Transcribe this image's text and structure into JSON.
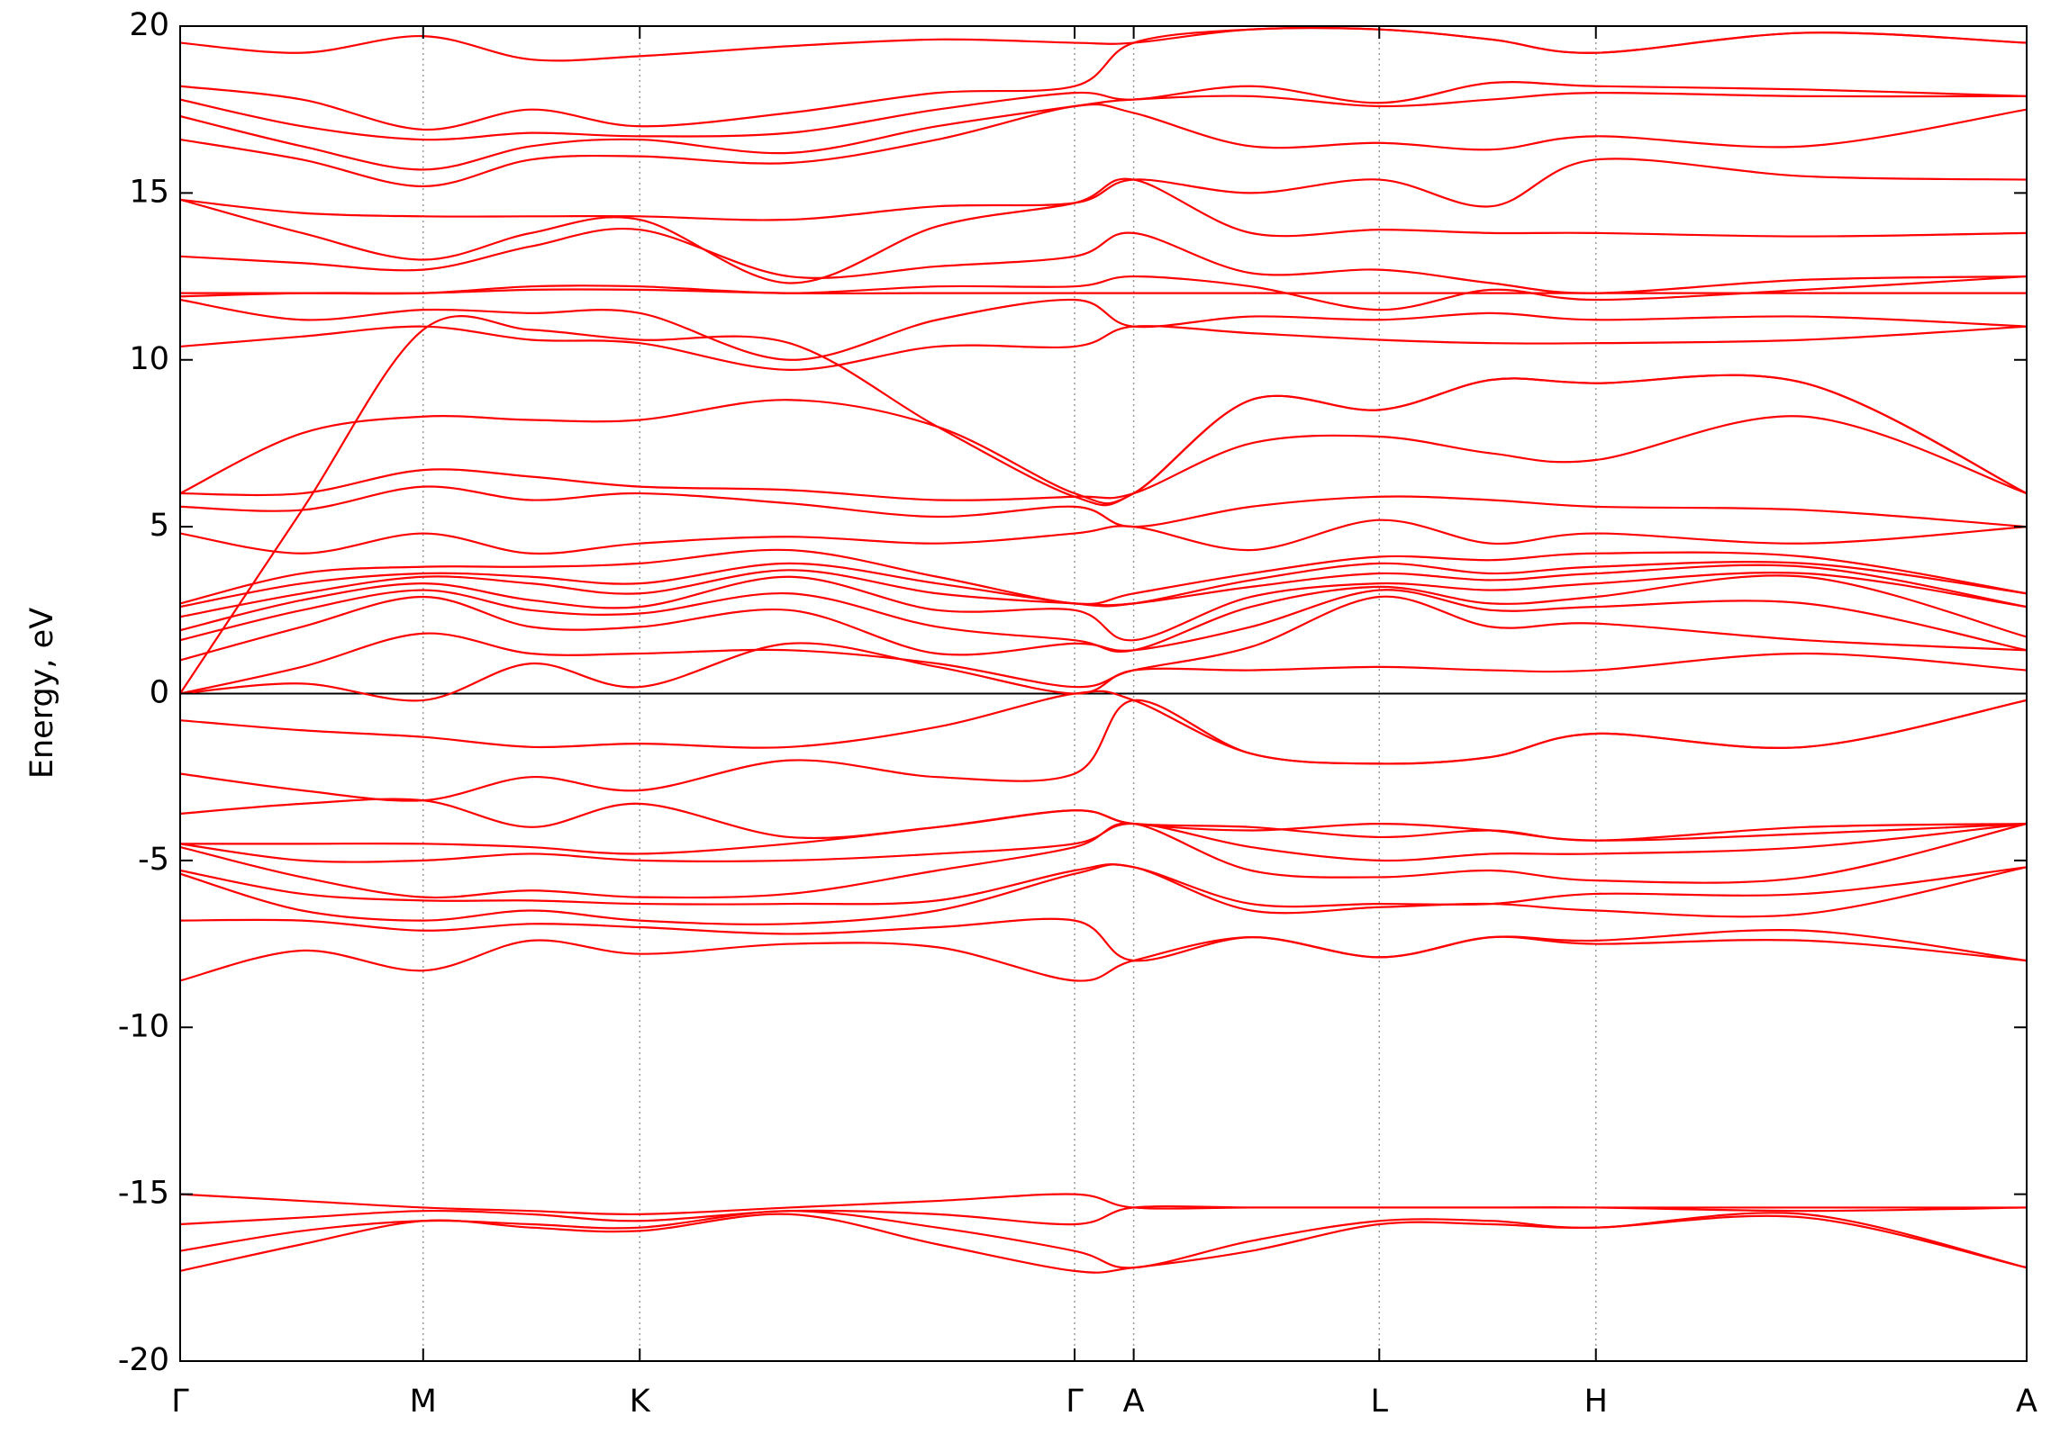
{
  "chart_data": {
    "type": "line",
    "y_label": "Energy, eV",
    "color": "#ff0000",
    "xlim": [
      0,
      1
    ],
    "ylim": [
      -20,
      20
    ],
    "xticks": [
      {
        "value": 0,
        "label": "Γ"
      },
      {
        "value": 0.1316,
        "label": "M"
      },
      {
        "value": 0.2489,
        "label": "K"
      },
      {
        "value": 0.4844,
        "label": "Γ"
      },
      {
        "value": 0.5164,
        "label": "A"
      },
      {
        "value": 0.6494,
        "label": "L"
      },
      {
        "value": 0.7667,
        "label": "H"
      },
      {
        "value": 1,
        "label": "A"
      }
    ],
    "yticks": [
      20,
      15,
      10,
      5,
      0,
      -5,
      -10,
      -15,
      -20
    ],
    "grid": "x",
    "hlines": [
      0
    ],
    "x": [
      0,
      0.066,
      0.1316,
      0.19,
      0.2489,
      0.33,
      0.41,
      0.4844,
      0.5164,
      0.58,
      0.6494,
      0.71,
      0.7667,
      0.88,
      1
    ],
    "series": [
      {
        "values": [
          -15.0,
          -15.2,
          -15.4,
          -15.5,
          -15.6,
          -15.4,
          -15.2,
          -15.0,
          -15.4,
          -15.4,
          -15.4,
          -15.4,
          -15.4,
          -15.4,
          -15.4
        ]
      },
      {
        "values": [
          -15.9,
          -15.7,
          -15.5,
          -15.6,
          -15.8,
          -15.5,
          -15.6,
          -15.9,
          -15.4,
          -15.4,
          -15.4,
          -15.4,
          -15.4,
          -15.5,
          -15.4
        ]
      },
      {
        "values": [
          -16.7,
          -16.1,
          -15.8,
          -15.9,
          -16.0,
          -15.5,
          -16.0,
          -16.7,
          -17.2,
          -16.4,
          -15.8,
          -15.8,
          -16.0,
          -15.6,
          -17.2
        ]
      },
      {
        "values": [
          -17.3,
          -16.5,
          -15.8,
          -16.0,
          -16.1,
          -15.6,
          -16.5,
          -17.3,
          -17.2,
          -16.7,
          -15.9,
          -15.9,
          -16.0,
          -15.7,
          -17.2
        ]
      },
      {
        "values": [
          -8.6,
          -7.7,
          -8.3,
          -7.4,
          -7.8,
          -7.5,
          -7.6,
          -8.6,
          -8.0,
          -7.3,
          -7.9,
          -7.3,
          -7.4,
          -7.1,
          -8.0
        ]
      },
      {
        "values": [
          -6.8,
          -6.8,
          -7.1,
          -6.9,
          -7.0,
          -7.2,
          -7.0,
          -6.8,
          -8.0,
          -7.3,
          -7.9,
          -7.3,
          -7.5,
          -7.4,
          -8.0
        ]
      },
      {
        "values": [
          -5.4,
          -6.5,
          -6.8,
          -6.5,
          -6.8,
          -6.9,
          -6.5,
          -5.4,
          -5.2,
          -6.5,
          -6.4,
          -6.3,
          -6.5,
          -6.6,
          -5.2
        ]
      },
      {
        "values": [
          -5.3,
          -6.0,
          -6.2,
          -6.2,
          -6.3,
          -6.3,
          -6.2,
          -5.3,
          -5.2,
          -6.3,
          -6.3,
          -6.3,
          -6.0,
          -6.0,
          -5.2
        ]
      },
      {
        "values": [
          -4.6,
          -5.5,
          -6.1,
          -5.9,
          -6.1,
          -6.0,
          -5.3,
          -4.6,
          -3.9,
          -5.3,
          -5.5,
          -5.3,
          -5.6,
          -5.5,
          -3.9
        ]
      },
      {
        "values": [
          -4.5,
          -5.0,
          -5.0,
          -4.8,
          -5.0,
          -5.0,
          -4.8,
          -4.5,
          -3.9,
          -4.6,
          -5.0,
          -4.8,
          -4.8,
          -4.6,
          -3.9
        ]
      },
      {
        "values": [
          -4.5,
          -4.5,
          -4.5,
          -4.6,
          -4.8,
          -4.5,
          -4.0,
          -3.5,
          -3.9,
          -4.1,
          -3.9,
          -4.1,
          -4.4,
          -4.2,
          -3.9
        ]
      },
      {
        "values": [
          -3.6,
          -3.3,
          -3.2,
          -4.0,
          -3.3,
          -4.3,
          -4.0,
          -3.5,
          -3.9,
          -4.0,
          -4.3,
          -4.1,
          -4.4,
          -4.0,
          -3.9
        ]
      },
      {
        "values": [
          -2.4,
          -2.9,
          -3.2,
          -2.5,
          -2.9,
          -2.0,
          -2.5,
          -2.4,
          -0.2,
          -1.8,
          -2.1,
          -1.9,
          -1.2,
          -1.6,
          -0.2
        ]
      },
      {
        "values": [
          -0.8,
          -1.1,
          -1.3,
          -1.6,
          -1.5,
          -1.6,
          -1.0,
          0.0,
          -0.2,
          -1.8,
          -2.1,
          -1.9,
          -1.2,
          -1.6,
          -0.2
        ]
      },
      {
        "values": [
          0.0,
          0.3,
          -0.2,
          0.9,
          0.2,
          1.5,
          0.8,
          0.0,
          0.7,
          0.7,
          0.8,
          0.7,
          0.7,
          1.2,
          0.7
        ]
      },
      {
        "values": [
          0.0,
          0.8,
          1.8,
          1.2,
          1.2,
          1.3,
          0.9,
          0.2,
          0.7,
          1.4,
          2.9,
          2.0,
          2.1,
          1.6,
          1.3
        ]
      },
      {
        "values": [
          1.0,
          2.0,
          2.9,
          2.0,
          2.0,
          2.5,
          1.2,
          1.5,
          1.3,
          2.0,
          3.1,
          2.5,
          2.6,
          2.7,
          1.3
        ]
      },
      {
        "values": [
          1.6,
          2.5,
          3.1,
          2.5,
          2.4,
          3.0,
          2.0,
          1.6,
          1.3,
          2.6,
          3.2,
          2.7,
          2.9,
          3.5,
          1.7
        ]
      },
      {
        "values": [
          1.9,
          2.8,
          3.3,
          2.8,
          2.6,
          3.5,
          2.5,
          2.5,
          1.6,
          2.9,
          3.3,
          3.1,
          3.3,
          3.6,
          2.6
        ]
      },
      {
        "values": [
          2.3,
          3.0,
          3.5,
          3.3,
          3.0,
          3.7,
          3.0,
          2.7,
          2.7,
          3.2,
          3.6,
          3.4,
          3.6,
          3.8,
          2.6
        ]
      },
      {
        "values": [
          2.6,
          3.3,
          3.6,
          3.5,
          3.3,
          3.9,
          3.3,
          2.7,
          2.7,
          3.4,
          3.9,
          3.6,
          3.8,
          3.9,
          3.0
        ]
      },
      {
        "values": [
          2.7,
          3.6,
          3.8,
          3.8,
          3.9,
          4.3,
          3.5,
          2.7,
          3.0,
          3.6,
          4.1,
          4.0,
          4.2,
          4.1,
          3.0
        ]
      },
      {
        "values": [
          4.8,
          4.2,
          4.8,
          4.2,
          4.5,
          4.7,
          4.5,
          4.8,
          5.0,
          4.3,
          5.2,
          4.5,
          4.8,
          4.5,
          5.0
        ]
      },
      {
        "values": [
          5.6,
          5.5,
          6.2,
          5.8,
          6.0,
          5.7,
          5.3,
          5.6,
          5.0,
          5.6,
          5.9,
          5.8,
          5.6,
          5.5,
          5.0
        ]
      },
      {
        "values": [
          6.0,
          6.0,
          6.7,
          6.5,
          6.2,
          6.1,
          5.8,
          5.9,
          6.0,
          7.5,
          7.7,
          7.2,
          7.0,
          8.3,
          6.0
        ]
      },
      {
        "values": [
          6.0,
          7.8,
          8.3,
          8.2,
          8.2,
          8.8,
          8.0,
          6.0,
          6.0,
          8.8,
          8.5,
          9.4,
          9.3,
          9.3,
          6.0
        ]
      },
      {
        "values": [
          0.0,
          5.5,
          10.9,
          10.9,
          10.6,
          10.5,
          8.0,
          5.9,
          6.0,
          8.8,
          8.5,
          9.4,
          9.3,
          9.3,
          6.0
        ]
      },
      {
        "values": [
          10.4,
          10.7,
          11.0,
          10.6,
          10.5,
          9.7,
          10.4,
          10.4,
          11.0,
          10.8,
          10.6,
          10.5,
          10.5,
          10.6,
          11.0
        ]
      },
      {
        "values": [
          11.8,
          11.2,
          11.5,
          11.4,
          11.4,
          10.0,
          11.2,
          11.8,
          11.0,
          11.3,
          11.2,
          11.4,
          11.2,
          11.3,
          11.0
        ]
      },
      {
        "values": [
          11.9,
          12.0,
          12.0,
          12.1,
          12.1,
          12.0,
          12.0,
          12.0,
          12.0,
          12.0,
          12.0,
          12.0,
          12.0,
          12.0,
          12.0
        ]
      },
      {
        "values": [
          12.0,
          12.0,
          12.0,
          12.2,
          12.2,
          12.0,
          12.2,
          12.2,
          12.5,
          12.2,
          11.5,
          12.1,
          11.8,
          12.1,
          12.5
        ]
      },
      {
        "values": [
          13.1,
          12.9,
          12.7,
          13.4,
          13.9,
          12.5,
          12.8,
          13.1,
          13.8,
          12.6,
          12.7,
          12.3,
          12.0,
          12.4,
          12.5
        ]
      },
      {
        "values": [
          14.8,
          13.8,
          13.0,
          13.8,
          14.2,
          12.3,
          14.0,
          14.7,
          15.4,
          13.8,
          13.9,
          13.8,
          13.8,
          13.7,
          13.8
        ]
      },
      {
        "values": [
          14.8,
          14.4,
          14.3,
          14.3,
          14.3,
          14.2,
          14.6,
          14.7,
          15.4,
          15.0,
          15.4,
          14.6,
          16.0,
          15.5,
          15.4
        ]
      },
      {
        "values": [
          16.6,
          16.0,
          15.2,
          16.0,
          16.1,
          15.9,
          16.6,
          17.6,
          17.4,
          16.4,
          16.5,
          16.3,
          16.7,
          16.4,
          17.5
        ]
      },
      {
        "values": [
          17.3,
          16.4,
          15.7,
          16.4,
          16.6,
          16.2,
          17.0,
          17.6,
          17.8,
          17.9,
          17.6,
          17.8,
          18.0,
          17.9,
          17.9
        ]
      },
      {
        "values": [
          17.8,
          17.0,
          16.6,
          16.8,
          16.7,
          16.8,
          17.5,
          18.0,
          17.8,
          18.2,
          17.7,
          18.3,
          18.2,
          18.1,
          17.9
        ]
      },
      {
        "values": [
          18.2,
          17.8,
          16.9,
          17.5,
          17.0,
          17.4,
          18.0,
          18.2,
          19.5,
          19.9,
          19.9,
          19.6,
          19.2,
          19.8,
          19.5
        ]
      },
      {
        "values": [
          19.5,
          19.2,
          19.7,
          19.0,
          19.1,
          19.4,
          19.6,
          19.5,
          19.5,
          19.9,
          19.9,
          19.6,
          19.2,
          19.8,
          19.5
        ]
      }
    ]
  }
}
